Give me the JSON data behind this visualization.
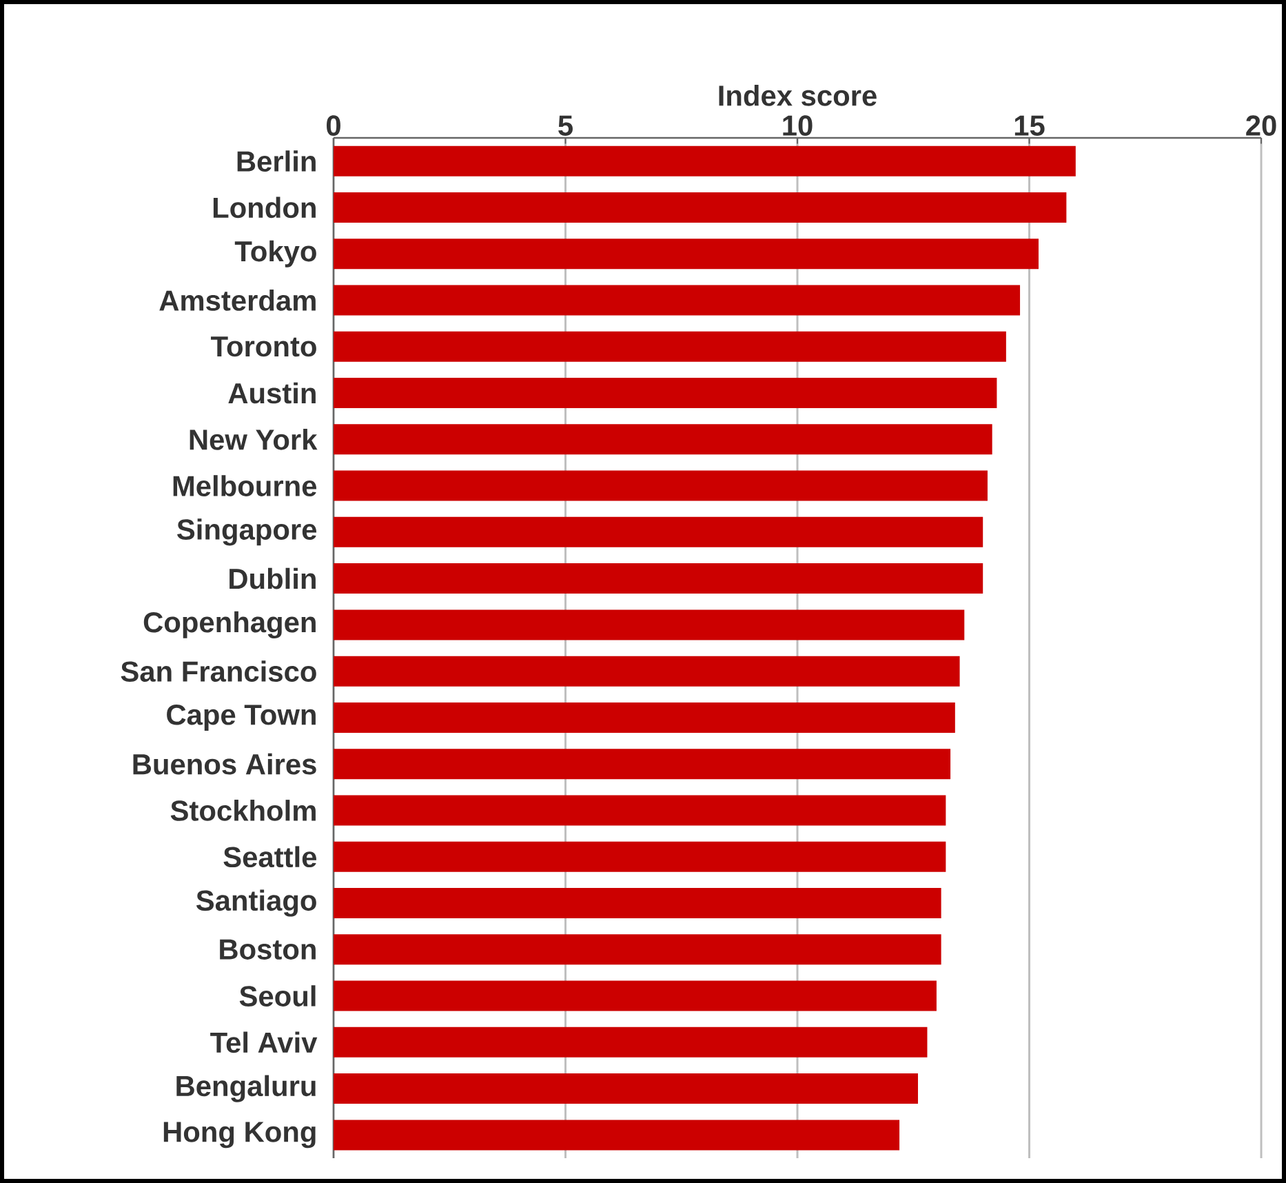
{
  "chart_data": {
    "type": "bar",
    "orientation": "horizontal",
    "xlabel": "Index score",
    "categories": [
      "Berlin",
      "London",
      "Tokyo",
      "Amsterdam",
      "Toronto",
      "Austin",
      "New York",
      "Melbourne",
      "Singapore",
      "Dublin",
      "Copenhagen",
      "San Francisco",
      "Cape Town",
      "Buenos Aires",
      "Stockholm",
      "Seattle",
      "Santiago",
      "Boston",
      "Seoul",
      "Tel Aviv",
      "Bengaluru",
      "Hong Kong"
    ],
    "values": [
      16.0,
      15.8,
      15.2,
      14.8,
      14.5,
      14.3,
      14.2,
      14.1,
      14.0,
      14.0,
      13.6,
      13.5,
      13.4,
      13.3,
      13.2,
      13.2,
      13.1,
      13.1,
      13.0,
      12.8,
      12.6,
      12.2
    ],
    "color": "#cc0000",
    "xlim": [
      0,
      20
    ],
    "xticks": [
      0,
      5,
      10,
      15,
      20
    ],
    "grid": "x"
  }
}
